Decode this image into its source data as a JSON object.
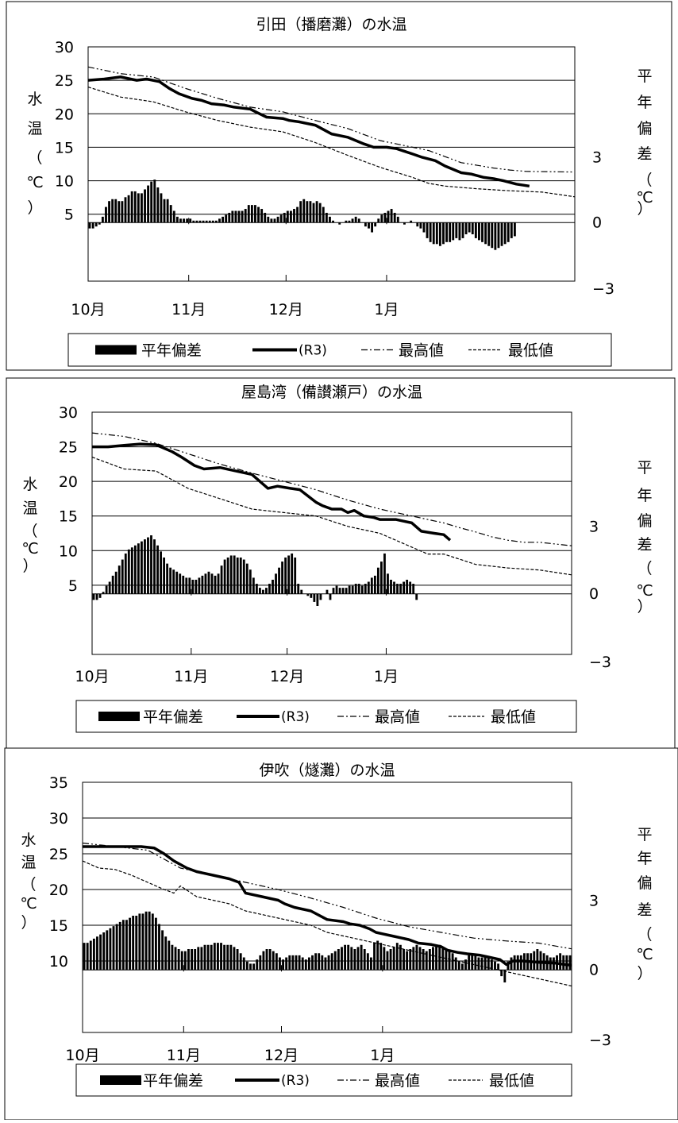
{
  "legend": {
    "anomaly": "平年偏差",
    "current": "(R3)",
    "max": "最高値",
    "min": "最低値"
  },
  "axes": {
    "ylabel_left": [
      "水",
      "温",
      "（",
      "℃",
      "）"
    ],
    "ylabel_right": [
      "平",
      "年",
      "偏",
      "差",
      "（",
      "℃",
      "）"
    ],
    "month_labels": [
      "10月",
      "11月",
      "12月",
      "1月"
    ]
  },
  "chart_data": [
    {
      "type": "line",
      "title": "引田（播磨灘）の水温",
      "xlabel": "",
      "ylabel": "水温（℃）",
      "y2label": "平年偏差（℃）",
      "x_categories": [
        "10月",
        "11月",
        "12月",
        "1月"
      ],
      "yticks": [
        5,
        10,
        15,
        20,
        25,
        30
      ],
      "y2ticks": [
        3,
        0,
        -3
      ],
      "ylim": [
        -5,
        30
      ],
      "y2lim": [
        -3,
        9
      ],
      "grid": true,
      "legend": "bottom",
      "series": [
        {
          "name": "(R3)",
          "x": [
            0,
            5,
            10,
            15,
            18,
            22,
            25,
            28,
            32,
            35,
            38,
            42,
            45,
            50,
            52,
            55,
            60,
            62,
            65,
            70,
            75,
            80,
            85,
            88,
            92,
            95,
            100,
            103,
            107,
            110,
            115,
            118,
            122,
            125,
            128,
            132,
            136
          ],
          "values": [
            25.0,
            25.2,
            25.5,
            25.0,
            25.2,
            24.8,
            23.8,
            23.0,
            22.3,
            22.0,
            21.5,
            21.3,
            21.0,
            20.7,
            20.2,
            19.5,
            19.3,
            19.0,
            18.8,
            18.3,
            17.0,
            16.5,
            15.5,
            15.0,
            15.0,
            14.8,
            14.0,
            13.5,
            13.0,
            12.2,
            11.2,
            11.0,
            10.5,
            10.3,
            10.0,
            9.5,
            9.2
          ]
        },
        {
          "name": "最高値",
          "x": [
            0,
            10,
            20,
            30,
            40,
            50,
            60,
            70,
            80,
            90,
            100,
            105,
            110,
            115,
            120,
            125,
            130,
            135,
            150
          ],
          "values": [
            27.0,
            26.0,
            25.5,
            23.8,
            22.3,
            21.0,
            20.3,
            19.0,
            17.8,
            16.0,
            15.0,
            14.5,
            13.6,
            12.7,
            12.3,
            11.9,
            11.6,
            11.4,
            11.3
          ]
        },
        {
          "name": "最低値",
          "x": [
            0,
            10,
            20,
            30,
            40,
            50,
            60,
            70,
            80,
            90,
            100,
            105,
            110,
            120,
            130,
            140,
            150
          ],
          "values": [
            24.0,
            22.5,
            21.8,
            20.3,
            19.0,
            18.0,
            17.3,
            15.7,
            13.8,
            12.0,
            10.5,
            9.6,
            9.2,
            8.8,
            8.5,
            8.3,
            7.6
          ]
        }
      ],
      "anomaly_days": 150,
      "anomaly": [
        -0.3,
        -0.3,
        -0.2,
        -0.1,
        0.3,
        0.8,
        1.1,
        1.2,
        1.2,
        1.1,
        1.1,
        1.3,
        1.4,
        1.6,
        1.6,
        1.5,
        1.5,
        1.7,
        1.9,
        2.1,
        2.2,
        1.8,
        1.5,
        1.2,
        1.2,
        0.9,
        0.6,
        0.3,
        0.2,
        0.2,
        0.2,
        0.2,
        0.1,
        0.1,
        0.1,
        0.1,
        0.1,
        0.1,
        0.1,
        0.1,
        0.2,
        0.3,
        0.4,
        0.5,
        0.6,
        0.6,
        0.6,
        0.6,
        0.7,
        0.9,
        0.9,
        0.9,
        0.8,
        0.7,
        0.5,
        0.3,
        0.2,
        0.2,
        0.3,
        0.4,
        0.5,
        0.6,
        0.6,
        0.7,
        0.8,
        1.1,
        1.2,
        1.1,
        1.1,
        1.0,
        1.1,
        1.0,
        0.8,
        0.5,
        0.3,
        0.1,
        0.0,
        -0.1,
        0.0,
        0.1,
        0.1,
        0.2,
        0.3,
        0.2,
        0.0,
        -0.2,
        -0.3,
        -0.5,
        -0.2,
        0.2,
        0.4,
        0.5,
        0.6,
        0.7,
        0.5,
        0.3,
        0.0,
        -0.1,
        0.0,
        0.1,
        0.0,
        -0.2,
        -0.3,
        -0.5,
        -0.8,
        -1.0,
        -1.1,
        -1.1,
        -1.2,
        -1.1,
        -1.0,
        -1.0,
        -0.9,
        -0.8,
        -0.9,
        -0.8,
        -0.6,
        -0.5,
        -0.6,
        -0.8,
        -0.9,
        -1.0,
        -1.1,
        -1.2,
        -1.3,
        -1.4,
        -1.3,
        -1.2,
        -1.1,
        -1.0,
        -0.8,
        -0.7
      ]
    },
    {
      "type": "line",
      "title": "屋島湾（備讃瀬戸）の水温",
      "xlabel": "",
      "ylabel": "水温（℃）",
      "y2label": "平年偏差（℃）",
      "x_categories": [
        "10月",
        "11月",
        "12月",
        "1月"
      ],
      "yticks": [
        5,
        10,
        15,
        20,
        25,
        30
      ],
      "y2ticks": [
        3,
        0,
        -3
      ],
      "ylim": [
        -5,
        30
      ],
      "y2lim": [
        -3,
        9
      ],
      "grid": true,
      "legend": "bottom",
      "series": [
        {
          "name": "(R3)",
          "x": [
            0,
            5,
            10,
            15,
            20,
            25,
            28,
            32,
            35,
            40,
            45,
            50,
            52,
            55,
            58,
            62,
            65,
            70,
            72,
            75,
            78,
            80,
            82,
            85,
            88,
            90,
            95,
            98,
            100,
            103,
            107,
            110,
            112
          ],
          "values": [
            25.0,
            25.0,
            25.2,
            25.4,
            25.3,
            24.3,
            23.5,
            22.3,
            21.8,
            22.0,
            21.5,
            21.0,
            20.2,
            19.0,
            19.3,
            19.0,
            18.8,
            17.0,
            16.5,
            16.0,
            16.0,
            15.5,
            15.8,
            15.0,
            14.8,
            14.5,
            14.5,
            14.2,
            14.0,
            12.8,
            12.5,
            12.3,
            11.5
          ]
        },
        {
          "name": "最高値",
          "x": [
            0,
            10,
            20,
            30,
            40,
            50,
            60,
            70,
            80,
            90,
            100,
            105,
            110,
            115,
            120,
            125,
            130,
            135,
            140,
            150
          ],
          "values": [
            27.0,
            26.5,
            25.5,
            24.0,
            22.5,
            21.2,
            20.0,
            18.8,
            17.3,
            16.0,
            15.0,
            14.5,
            14.0,
            13.3,
            12.7,
            12.0,
            11.5,
            11.2,
            11.2,
            10.7
          ]
        },
        {
          "name": "最低値",
          "x": [
            0,
            10,
            20,
            30,
            40,
            50,
            60,
            70,
            80,
            90,
            100,
            105,
            110,
            120,
            130,
            140,
            150
          ],
          "values": [
            23.5,
            21.8,
            21.5,
            19.0,
            17.5,
            16.0,
            15.5,
            15.0,
            13.5,
            12.5,
            10.5,
            9.5,
            9.5,
            8.0,
            7.5,
            7.2,
            6.5
          ]
        }
      ],
      "anomaly_days": 112,
      "anomaly": [
        -0.3,
        -0.3,
        -0.2,
        0.1,
        0.4,
        0.6,
        0.9,
        1.1,
        1.4,
        1.7,
        2.0,
        2.2,
        2.3,
        2.4,
        2.5,
        2.6,
        2.7,
        2.8,
        2.9,
        2.7,
        2.4,
        2.1,
        1.8,
        1.5,
        1.3,
        1.2,
        1.1,
        1.0,
        0.9,
        0.8,
        0.8,
        0.7,
        0.7,
        0.8,
        0.9,
        1.0,
        1.1,
        1.0,
        0.9,
        1.0,
        1.4,
        1.7,
        1.8,
        1.9,
        1.9,
        1.8,
        1.8,
        1.7,
        1.5,
        1.2,
        0.8,
        0.5,
        0.3,
        0.2,
        0.3,
        0.5,
        0.7,
        1.0,
        1.3,
        1.6,
        1.8,
        1.9,
        2.0,
        1.8,
        0.5,
        0.2,
        0.0,
        -0.1,
        -0.2,
        -0.4,
        -0.6,
        -0.3,
        0.0,
        0.2,
        -0.3,
        0.3,
        0.4,
        0.3,
        0.3,
        0.3,
        0.4,
        0.4,
        0.5,
        0.5,
        0.4,
        0.5,
        0.6,
        0.8,
        0.9,
        1.3,
        1.6,
        2.0,
        1.0,
        0.7,
        0.6,
        0.5,
        0.5,
        0.6,
        0.7,
        0.6,
        0.5,
        -0.3,
        0.0,
        0.0,
        0.0,
        0.0,
        0.0,
        0.0,
        0.0,
        0.0,
        0.0,
        0.0
      ]
    },
    {
      "type": "line",
      "title": "伊吹（燧灘）の水温",
      "xlabel": "",
      "ylabel": "水温（℃）",
      "y2label": "平年偏差（℃）",
      "x_categories": [
        "10月",
        "11月",
        "12月",
        "1月"
      ],
      "yticks": [
        10,
        15,
        20,
        25,
        30,
        35
      ],
      "y2ticks": [
        3,
        0,
        -3
      ],
      "ylim": [
        0,
        35
      ],
      "y2lim": [
        -3,
        9
      ],
      "grid": true,
      "legend": "bottom",
      "series": [
        {
          "name": "(R3)",
          "x": [
            0,
            5,
            10,
            15,
            18,
            22,
            25,
            28,
            32,
            35,
            40,
            45,
            48,
            50,
            52,
            55,
            60,
            62,
            65,
            70,
            75,
            80,
            82,
            85,
            88,
            90,
            92,
            95,
            100,
            103,
            107,
            110,
            112,
            115,
            118,
            122,
            125,
            128,
            130,
            132,
            135,
            140,
            145,
            148,
            150
          ],
          "values": [
            26.0,
            26.0,
            26.0,
            26.0,
            26.0,
            25.8,
            25.0,
            24.0,
            23.0,
            22.5,
            22.0,
            21.5,
            21.0,
            19.5,
            19.3,
            19.0,
            18.5,
            18.0,
            17.5,
            17.0,
            15.8,
            15.5,
            15.2,
            15.0,
            14.5,
            14.0,
            13.8,
            13.5,
            13.0,
            12.5,
            12.3,
            12.0,
            11.5,
            11.2,
            11.0,
            10.8,
            10.5,
            10.2,
            9.5,
            10.0,
            10.0,
            9.8,
            9.7,
            9.5,
            9.4
          ]
        },
        {
          "name": "最高値",
          "x": [
            0,
            10,
            20,
            30,
            40,
            50,
            60,
            70,
            80,
            90,
            100,
            110,
            120,
            130,
            140,
            150
          ],
          "values": [
            26.5,
            26.0,
            25.5,
            23.0,
            22.0,
            21.0,
            20.0,
            18.8,
            17.5,
            16.0,
            14.8,
            14.0,
            13.2,
            12.8,
            12.5,
            11.7
          ]
        },
        {
          "name": "最低値",
          "x": [
            0,
            5,
            10,
            15,
            20,
            25,
            28,
            30,
            35,
            40,
            45,
            50,
            55,
            60,
            65,
            70,
            75,
            80,
            85,
            90,
            95,
            100,
            105,
            110,
            115,
            120,
            125,
            130,
            135,
            140,
            145,
            150
          ],
          "values": [
            24.0,
            23.0,
            22.8,
            22.0,
            21.0,
            20.0,
            19.5,
            20.5,
            19.0,
            18.5,
            18.0,
            17.0,
            16.5,
            16.0,
            15.5,
            15.0,
            14.0,
            13.5,
            13.0,
            12.5,
            12.0,
            11.5,
            11.0,
            10.5,
            10.0,
            9.5,
            9.0,
            8.5,
            8.0,
            7.5,
            7.0,
            6.5
          ]
        }
      ],
      "anomaly_days": 150,
      "anomaly": [
        1.3,
        1.3,
        1.4,
        1.5,
        1.6,
        1.7,
        1.8,
        1.9,
        2.0,
        2.1,
        2.2,
        2.3,
        2.4,
        2.4,
        2.5,
        2.6,
        2.6,
        2.7,
        2.7,
        2.8,
        2.8,
        2.7,
        2.5,
        2.2,
        1.9,
        1.6,
        1.4,
        1.2,
        1.1,
        1.0,
        0.9,
        0.9,
        1.0,
        1.0,
        1.0,
        1.1,
        1.1,
        1.2,
        1.2,
        1.2,
        1.3,
        1.3,
        1.3,
        1.2,
        1.2,
        1.2,
        1.1,
        1.0,
        0.8,
        0.6,
        0.4,
        0.3,
        0.3,
        0.5,
        0.7,
        0.9,
        1.0,
        1.0,
        0.9,
        0.8,
        0.6,
        0.5,
        0.6,
        0.7,
        0.7,
        0.7,
        0.7,
        0.6,
        0.5,
        0.6,
        0.7,
        0.8,
        0.8,
        0.7,
        0.6,
        0.7,
        0.8,
        0.9,
        1.0,
        1.1,
        1.2,
        1.2,
        1.1,
        1.0,
        1.1,
        1.2,
        1.0,
        0.8,
        0.6,
        1.3,
        1.4,
        1.3,
        1.1,
        0.9,
        1.0,
        1.1,
        1.3,
        1.2,
        1.0,
        0.9,
        1.0,
        1.1,
        1.2,
        1.1,
        1.0,
        0.9,
        1.0,
        1.1,
        1.2,
        1.2,
        1.1,
        1.0,
        0.9,
        0.8,
        0.6,
        0.4,
        0.3,
        0.5,
        0.7,
        0.8,
        0.7,
        0.6,
        0.6,
        0.7,
        0.6,
        0.5,
        0.4,
        0.3,
        -0.3,
        -0.6,
        0.4,
        0.6,
        0.7,
        0.7,
        0.7,
        0.8,
        0.8,
        0.8,
        0.9,
        1.0,
        0.9,
        0.8,
        0.7,
        0.6,
        0.6,
        0.7,
        0.8,
        0.7,
        0.7,
        0.7
      ]
    }
  ]
}
